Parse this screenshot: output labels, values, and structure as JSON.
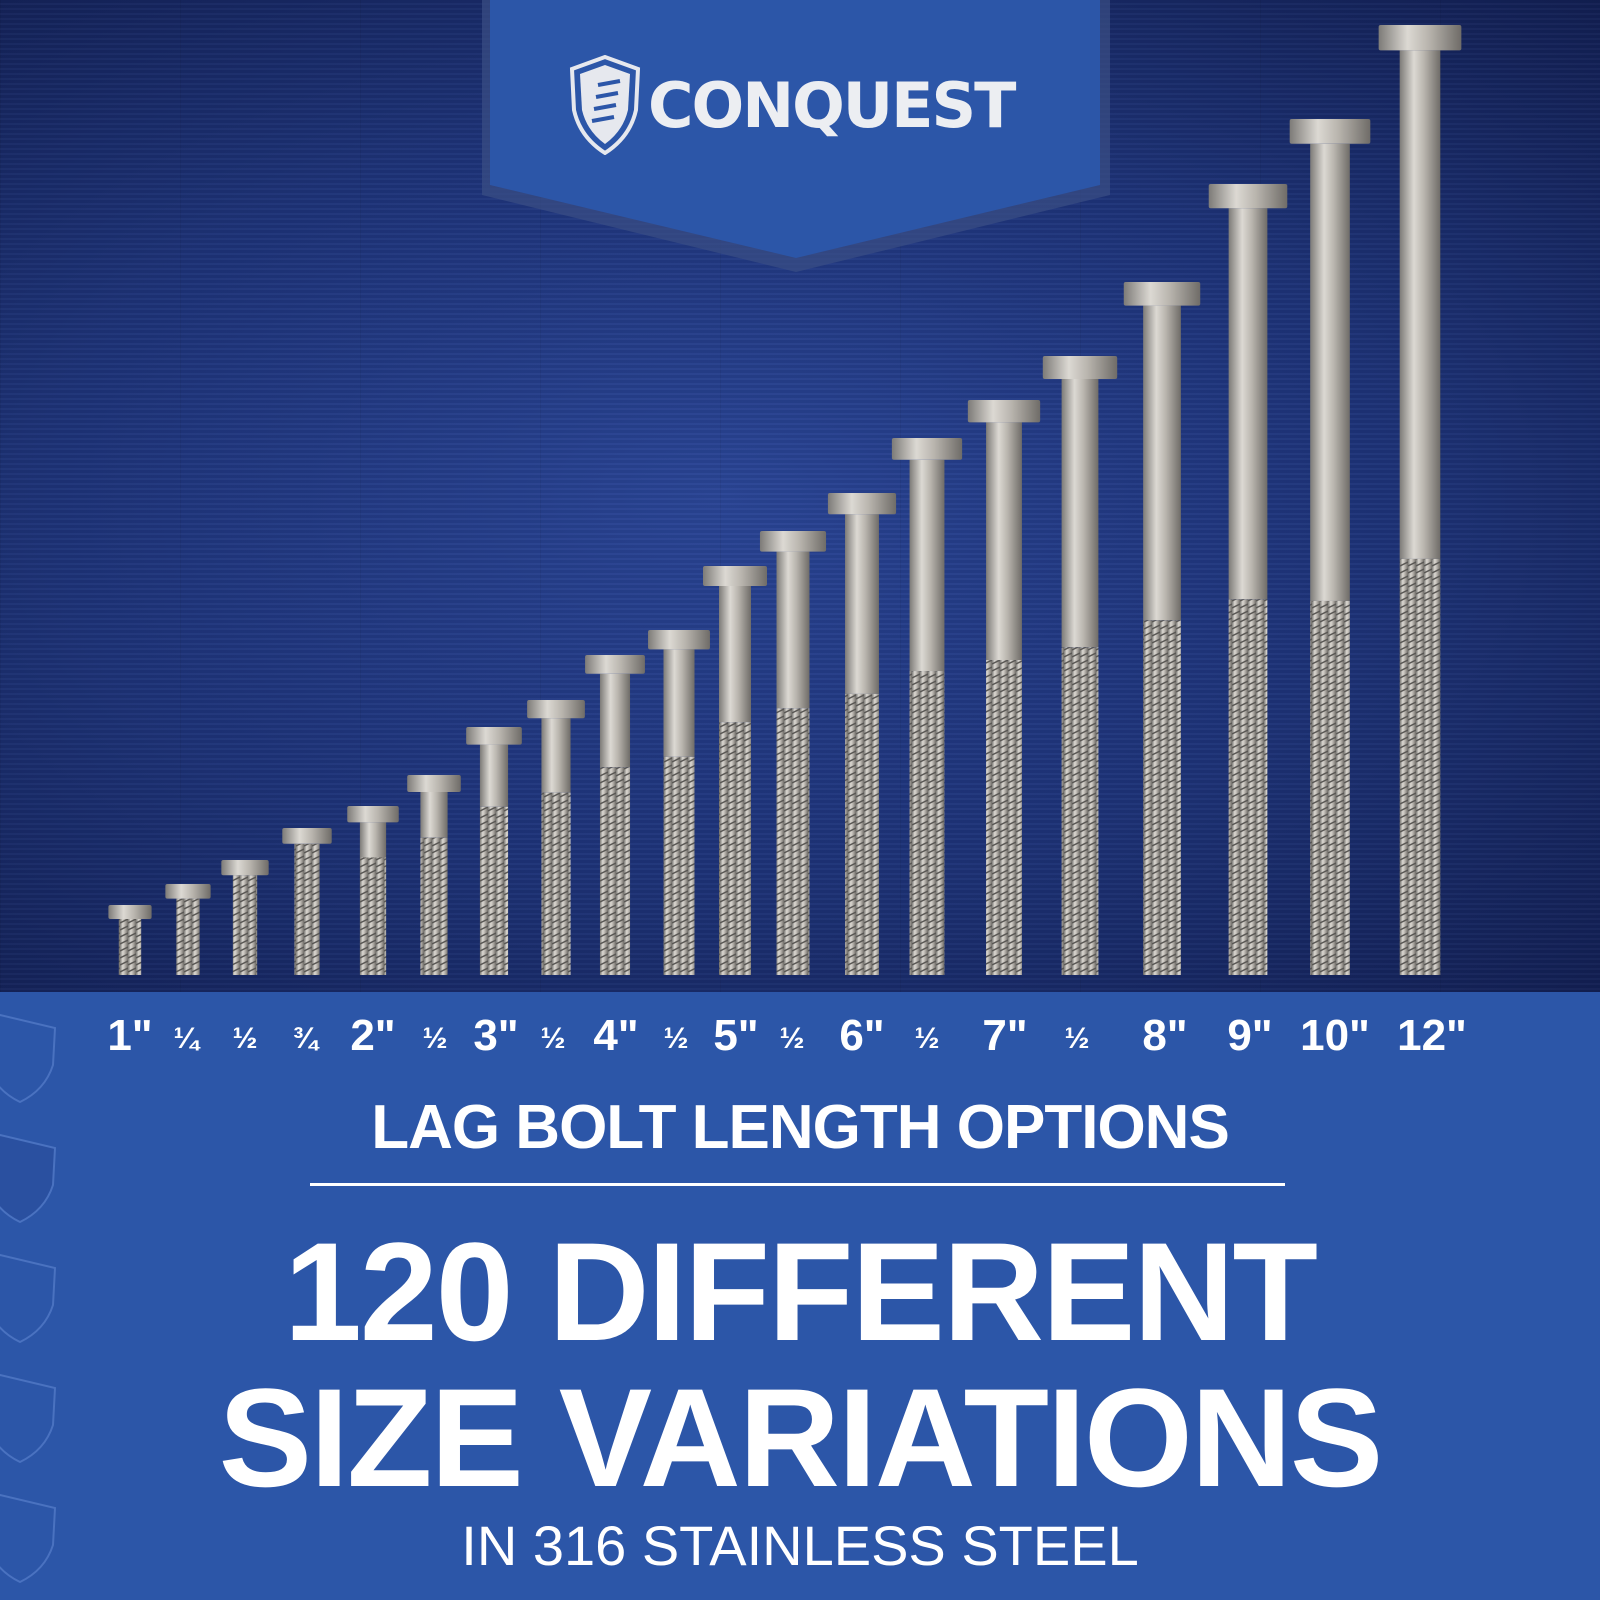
{
  "brand": {
    "name": "CONQUEST",
    "logo_icon": "shield-screw-icon",
    "banner_color": "#2c56a8"
  },
  "bolts": [
    {
      "label": "1\"",
      "length_in": 1,
      "style": "big"
    },
    {
      "label": "¼",
      "length_in": 1.25,
      "style": "small"
    },
    {
      "label": "½",
      "length_in": 1.5,
      "style": "small"
    },
    {
      "label": "¾",
      "length_in": 1.75,
      "style": "small"
    },
    {
      "label": "2\"",
      "length_in": 2,
      "style": "big"
    },
    {
      "label": "½",
      "length_in": 2.5,
      "style": "small"
    },
    {
      "label": "3\"",
      "length_in": 3,
      "style": "big"
    },
    {
      "label": "½",
      "length_in": 3.5,
      "style": "small"
    },
    {
      "label": "4\"",
      "length_in": 4,
      "style": "big"
    },
    {
      "label": "½",
      "length_in": 4.5,
      "style": "small"
    },
    {
      "label": "5\"",
      "length_in": 5,
      "style": "big"
    },
    {
      "label": "½",
      "length_in": 5.5,
      "style": "small"
    },
    {
      "label": "6\"",
      "length_in": 6,
      "style": "big"
    },
    {
      "label": "½",
      "length_in": 6.5,
      "style": "small"
    },
    {
      "label": "7\"",
      "length_in": 7,
      "style": "big"
    },
    {
      "label": "½",
      "length_in": 7.5,
      "style": "small"
    },
    {
      "label": "8\"",
      "length_in": 8,
      "style": "big"
    },
    {
      "label": "9\"",
      "length_in": 9,
      "style": "big"
    },
    {
      "label": "10\"",
      "length_in": 10,
      "style": "big"
    },
    {
      "label": "12\"",
      "length_in": 12,
      "style": "big"
    }
  ],
  "subtitle": "LAG BOLT LENGTH OPTIONS",
  "headline": {
    "line1": "120 DIFFERENT",
    "line2": "SIZE VARIATIONS"
  },
  "tagline": "IN 316 STAINLESS STEEL"
}
